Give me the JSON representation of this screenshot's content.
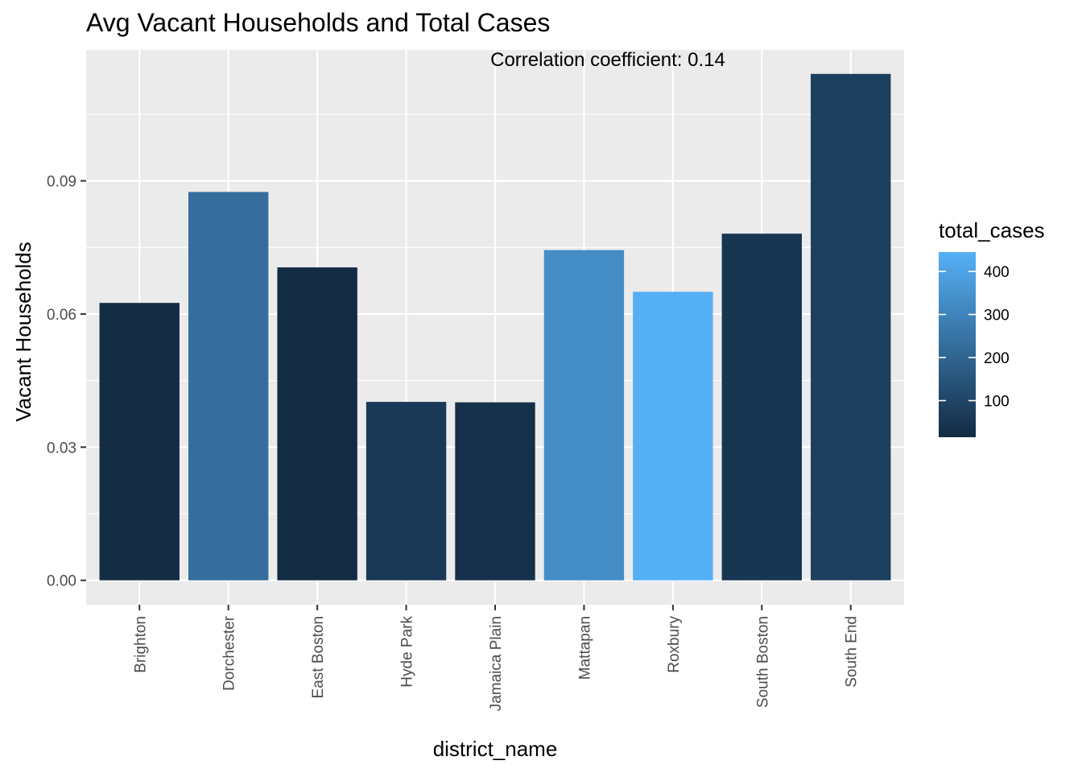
{
  "chart_data": {
    "type": "bar",
    "title": "Avg Vacant Households and Total Cases",
    "annotation": "Correlation coefficient:  0.14",
    "xlabel": "district_name",
    "ylabel": "Vacant Households",
    "categories": [
      "Brighton",
      "Dorchester",
      "East Boston",
      "Hyde Park",
      "Jamaica Plain",
      "Mattapan",
      "Roxbury",
      "South Boston",
      "South End"
    ],
    "values": [
      0.0625,
      0.0875,
      0.0705,
      0.0402,
      0.0401,
      0.0744,
      0.065,
      0.0781,
      0.1141
    ],
    "fill_values": [
      20,
      230,
      15,
      60,
      30,
      330,
      440,
      50,
      80
    ],
    "ylim": [
      -0.0055,
      0.1195
    ],
    "yticks": [
      0.0,
      0.03,
      0.06,
      0.09
    ],
    "ytick_labels": [
      "0.00",
      "0.03",
      "0.06",
      "0.09"
    ],
    "grid": true,
    "legend": {
      "title": "total_cases",
      "placement": "right",
      "range": [
        15,
        445
      ],
      "color_low": "#132B43",
      "color_high": "#56B1F7",
      "ticks": [
        100,
        200,
        300,
        400
      ],
      "tick_labels": [
        "100",
        "200",
        "300",
        "400"
      ]
    }
  }
}
